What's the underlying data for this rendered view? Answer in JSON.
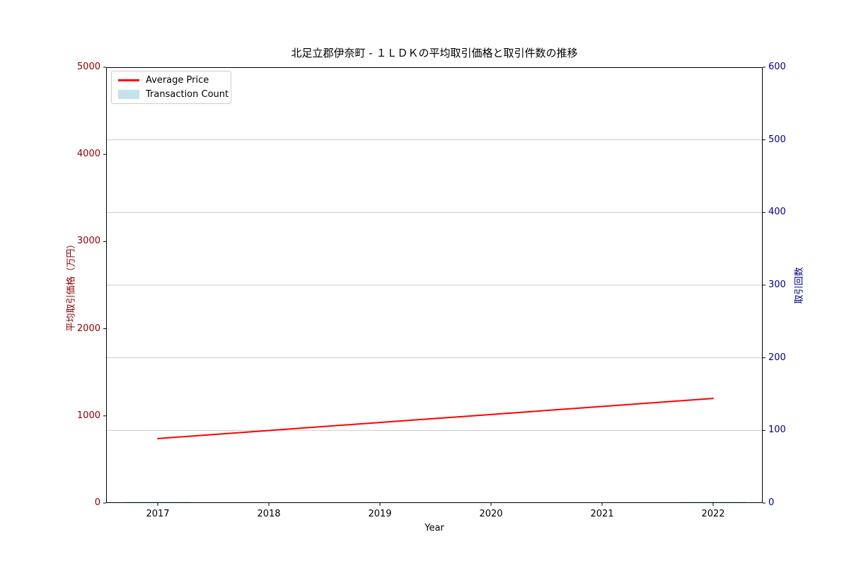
{
  "chart_data": {
    "type": "line",
    "title": "北足立郡伊奈町 - １ＬＤＫの平均取引価格と取引件数の推移",
    "xlabel": "Year",
    "ylabel_left": "平均取引価格（万円）",
    "ylabel_right": "取引回数",
    "categories": [
      "2017",
      "2018",
      "2019",
      "2020",
      "2021",
      "2022"
    ],
    "series": [
      {
        "name": "Average Price",
        "kind": "line",
        "axis": "left",
        "color": "#ff0000",
        "values": [
          740,
          832,
          924,
          1016,
          1108,
          1200
        ]
      },
      {
        "name": "Transaction Count",
        "kind": "bar",
        "axis": "right",
        "color": "#add8e6",
        "values": [
          2,
          0,
          0,
          0,
          0,
          2
        ]
      }
    ],
    "left_axis": {
      "min": 0,
      "max": 5000,
      "ticks": [
        0,
        1000,
        2000,
        3000,
        4000,
        5000
      ],
      "text_color": "#8b0000"
    },
    "right_axis": {
      "min": 0,
      "max": 600,
      "ticks": [
        0,
        100,
        200,
        300,
        400,
        500,
        600
      ],
      "text_color": "#00008b"
    },
    "x_tick_color": "#000000",
    "grid": {
      "on": true,
      "axis": "right",
      "color": "#cccccc"
    },
    "legend_position": "upper-left"
  }
}
